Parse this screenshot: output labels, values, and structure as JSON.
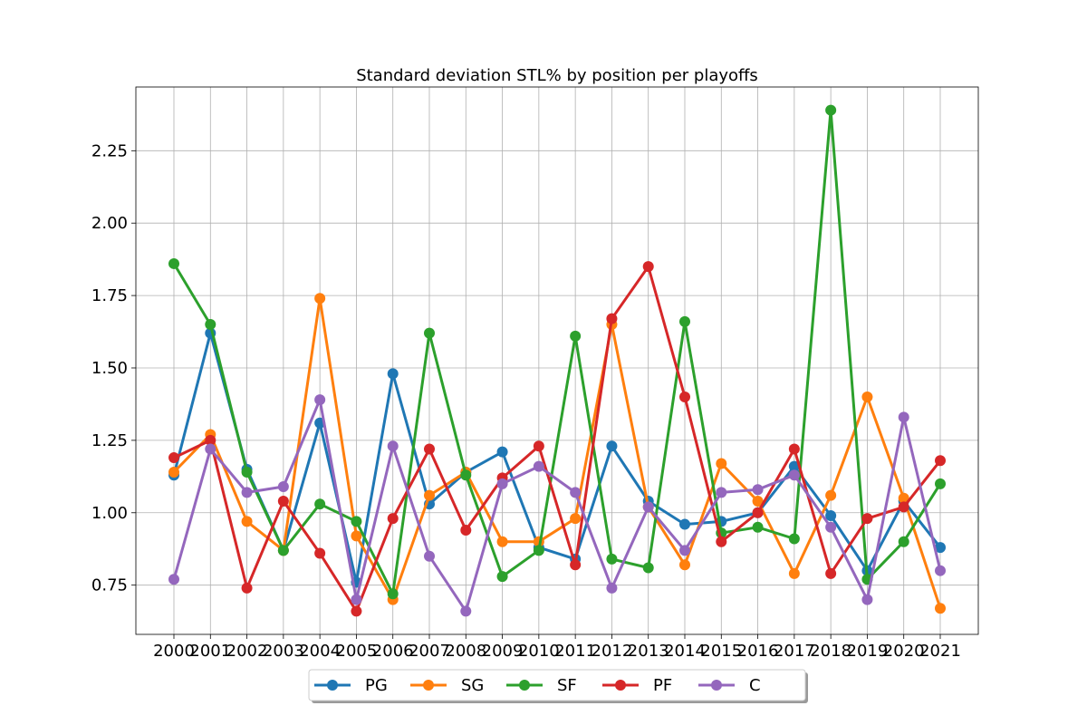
{
  "chart_data": {
    "type": "line",
    "title": "Standard deviation STL% by position per playoffs",
    "xlabel": "",
    "ylabel": "",
    "categories": [
      "2000",
      "2001",
      "2002",
      "2003",
      "2004",
      "2005",
      "2006",
      "2007",
      "2008",
      "2009",
      "2010",
      "2011",
      "2012",
      "2013",
      "2014",
      "2015",
      "2016",
      "2017",
      "2018",
      "2019",
      "2020",
      "2021"
    ],
    "ylim": [
      0.58,
      2.47
    ],
    "yticks": [
      0.75,
      1.0,
      1.25,
      1.5,
      1.75,
      2.0,
      2.25
    ],
    "ytick_labels": [
      "0.75",
      "1.00",
      "1.25",
      "1.50",
      "1.75",
      "2.00",
      "2.25"
    ],
    "grid": true,
    "legend_position": "bottom-center",
    "series": [
      {
        "name": "PG",
        "color": "#1f77b4",
        "values": [
          1.13,
          1.62,
          1.15,
          0.87,
          1.31,
          0.76,
          1.48,
          1.03,
          1.14,
          1.21,
          0.88,
          0.84,
          1.23,
          1.04,
          0.96,
          0.97,
          1.0,
          1.16,
          0.99,
          0.8,
          1.04,
          0.88
        ]
      },
      {
        "name": "SG",
        "color": "#ff7f0e",
        "values": [
          1.14,
          1.27,
          0.97,
          0.87,
          1.74,
          0.92,
          0.7,
          1.06,
          1.14,
          0.9,
          0.9,
          0.98,
          1.65,
          1.02,
          0.82,
          1.17,
          1.04,
          0.79,
          1.06,
          1.4,
          1.05,
          0.67
        ]
      },
      {
        "name": "SF",
        "color": "#2ca02c",
        "values": [
          1.86,
          1.65,
          1.14,
          0.87,
          1.03,
          0.97,
          0.72,
          1.62,
          1.13,
          0.78,
          0.87,
          1.61,
          0.84,
          0.81,
          1.66,
          0.93,
          0.95,
          0.91,
          2.39,
          0.77,
          0.9,
          1.1
        ]
      },
      {
        "name": "PF",
        "color": "#d62728",
        "values": [
          1.19,
          1.25,
          0.74,
          1.04,
          0.86,
          0.66,
          0.98,
          1.22,
          0.94,
          1.12,
          1.23,
          0.82,
          1.67,
          1.85,
          1.4,
          0.9,
          1.0,
          1.22,
          0.79,
          0.98,
          1.02,
          1.18
        ]
      },
      {
        "name": "C",
        "color": "#9467bd",
        "values": [
          0.77,
          1.22,
          1.07,
          1.09,
          1.39,
          0.7,
          1.23,
          0.85,
          0.66,
          1.1,
          1.16,
          1.07,
          0.74,
          1.02,
          0.87,
          1.07,
          1.08,
          1.13,
          0.95,
          0.7,
          1.33,
          0.8
        ]
      }
    ]
  }
}
